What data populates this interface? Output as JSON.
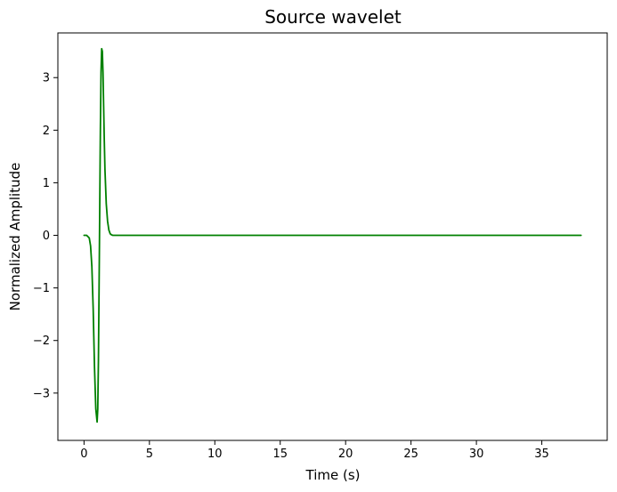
{
  "chart_data": {
    "type": "line",
    "title": "Source wavelet",
    "xlabel": "Time (s)",
    "ylabel": "Normalized Amplitude",
    "xlim": [
      -2.0,
      40.0
    ],
    "ylim": [
      -3.9,
      3.85
    ],
    "xticks": [
      0,
      5,
      10,
      15,
      20,
      25,
      30,
      35
    ],
    "xtick_labels": [
      "0",
      "5",
      "10",
      "15",
      "20",
      "25",
      "30",
      "35"
    ],
    "yticks": [
      -3,
      -2,
      -1,
      0,
      1,
      2,
      3
    ],
    "ytick_labels": [
      "−3",
      "−2",
      "−1",
      "0",
      "1",
      "2",
      "3"
    ],
    "grid": false,
    "legend": "none",
    "series": [
      {
        "color": "#008000",
        "x": [
          0.0,
          0.2,
          0.4,
          0.5,
          0.6,
          0.7,
          0.8,
          0.9,
          1.0,
          1.05,
          1.1,
          1.15,
          1.2,
          1.25,
          1.3,
          1.35,
          1.4,
          1.45,
          1.5,
          1.55,
          1.6,
          1.7,
          1.8,
          1.9,
          2.0,
          2.1,
          2.2,
          2.4,
          3.0,
          38.0
        ],
        "y": [
          0.0,
          0.0,
          -0.05,
          -0.2,
          -0.6,
          -1.4,
          -2.5,
          -3.3,
          -3.55,
          -3.3,
          -2.4,
          -1.0,
          0.5,
          2.0,
          3.1,
          3.55,
          3.5,
          3.1,
          2.45,
          1.8,
          1.25,
          0.6,
          0.27,
          0.1,
          0.03,
          0.01,
          0.0,
          0.0,
          0.0,
          0.0
        ]
      }
    ]
  }
}
